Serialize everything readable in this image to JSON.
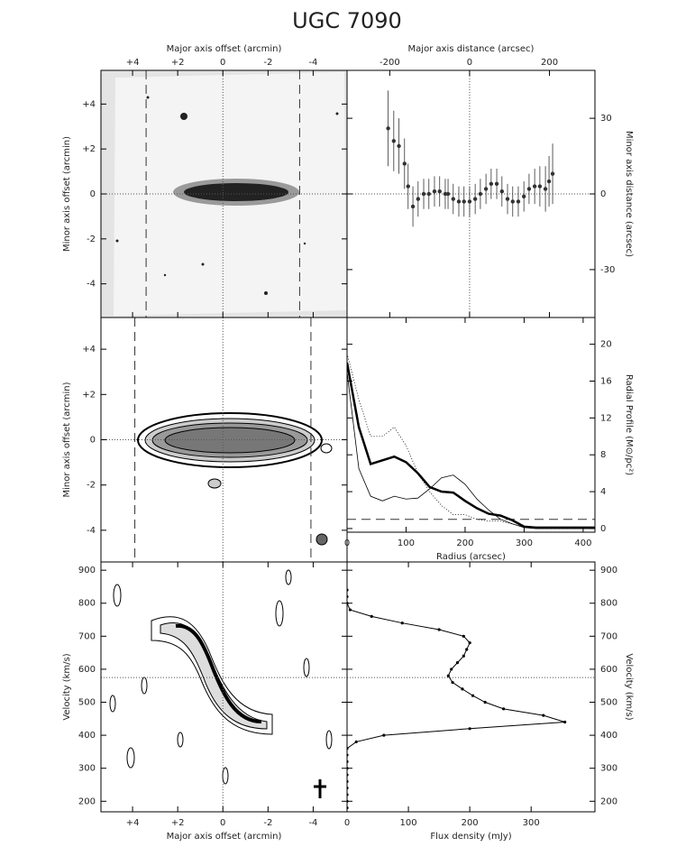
{
  "title": "UGC 7090",
  "chart_data": [
    {
      "type": "image",
      "x_label": "Major axis offset (arcmin)",
      "y_label": "Minor axis offset (arcmin)",
      "xlim": [
        5.4,
        -5.5
      ],
      "ylim": [
        -5.5,
        5.5
      ],
      "xticks": [
        {
          "value": 4,
          "label": "+4"
        },
        {
          "value": 2,
          "label": "+2"
        },
        0,
        -2,
        -4
      ],
      "yticks": [
        {
          "value": 4,
          "label": "+4"
        },
        {
          "value": 2,
          "label": "+2"
        },
        0,
        -2,
        -4
      ],
      "dashed_x": [
        3.4,
        -3.4
      ],
      "zero_lines": true
    },
    {
      "type": "scatter",
      "x_label": "Major axis distance (arcsec)",
      "y_label": "Minor axis distance (arcsec)",
      "xlim": [
        -307,
        314
      ],
      "ylim": [
        -49,
        49
      ],
      "xticks": [
        -200,
        0,
        200
      ],
      "yticks": [
        30,
        0,
        -30
      ],
      "zero_lines": true,
      "series": [
        {
          "color": "#333333",
          "x": [
            -204,
            -190,
            -177,
            -163,
            -154,
            -142,
            -129,
            -115,
            -102,
            -88,
            -75,
            -61,
            -54,
            -41,
            -27,
            -14,
            0,
            14,
            27,
            41,
            54,
            68,
            81,
            95,
            108,
            122,
            136,
            149,
            163,
            176,
            190,
            199,
            208
          ],
          "values": [
            26,
            21,
            19,
            12,
            3,
            -5,
            -2,
            0,
            0,
            1,
            1,
            0,
            0,
            -2,
            -3,
            -3,
            -3,
            -2,
            0,
            2,
            4,
            4,
            1,
            -2,
            -3,
            -3,
            -1,
            2,
            3,
            3,
            2,
            5,
            8
          ],
          "errors": [
            15,
            12,
            11,
            10,
            9,
            8,
            7,
            6,
            6,
            6,
            6,
            6,
            6,
            6,
            6,
            6,
            6,
            6,
            6,
            6,
            6,
            6,
            6,
            6,
            6,
            6,
            6,
            6,
            7,
            8,
            9,
            10,
            12
          ]
        }
      ]
    },
    {
      "type": "image",
      "y_label": "Minor axis offset (arcmin)",
      "xlim": [
        5.4,
        -5.5
      ],
      "ylim": [
        -5.4,
        5.4
      ],
      "yticks": [
        {
          "value": 4,
          "label": "+4"
        },
        {
          "value": 2,
          "label": "+2"
        },
        0,
        -2,
        -4
      ],
      "dashed_x": [
        3.9,
        -3.9
      ],
      "zero_lines": true
    },
    {
      "type": "line",
      "x_label": "Radius (arcsec)",
      "y_label": "Radial Profile (M⊙/pc²)",
      "xlim": [
        0,
        420
      ],
      "ylim": [
        -0.4,
        22.9
      ],
      "xticks": [
        0,
        100,
        200,
        300,
        400
      ],
      "yticks": [
        0,
        4,
        8,
        12,
        16,
        20
      ],
      "reference_line": 1,
      "x": [
        0,
        20,
        40,
        60,
        80,
        100,
        120,
        140,
        160,
        180,
        200,
        220,
        240,
        260,
        280,
        300,
        320,
        340,
        360,
        380,
        400,
        420
      ],
      "series": [
        {
          "color": "#000000",
          "width": 2.5,
          "dash": "none",
          "values": [
            18,
            11,
            7,
            7.4,
            7.8,
            7.2,
            6,
            4.5,
            4,
            3.9,
            3,
            2.2,
            1.6,
            1.4,
            0.9,
            0.2,
            0.1,
            0.1,
            0.1,
            0.1,
            0.1,
            0.1
          ]
        },
        {
          "color": "#000000",
          "width": 0.8,
          "dash": "none",
          "values": [
            17,
            6.5,
            3.5,
            3,
            3.5,
            3.2,
            3.3,
            4.3,
            5.5,
            5.8,
            4.8,
            3.2,
            2,
            1,
            0.5,
            0.1,
            0,
            0,
            0,
            0,
            0,
            0
          ]
        },
        {
          "color": "#000000",
          "width": 0.8,
          "dash": "1,2",
          "values": [
            19,
            14,
            10,
            10,
            11,
            9,
            6,
            4,
            2.5,
            1.5,
            1.5,
            1,
            0.8,
            0.8,
            0.5,
            0.2,
            0,
            0,
            0,
            0,
            0,
            0
          ]
        }
      ]
    },
    {
      "type": "image",
      "x_label": "Major axis offset (arcmin)",
      "y_label": "Velocity (km/s)",
      "xlim": [
        5.4,
        -5.5
      ],
      "ylim": [
        168,
        925
      ],
      "xticks": [
        {
          "value": 4,
          "label": "+4"
        },
        {
          "value": 2,
          "label": "+2"
        },
        0,
        -2,
        -4
      ],
      "yticks": [
        200,
        300,
        400,
        500,
        600,
        700,
        800,
        900
      ],
      "vsys": 575,
      "zero_lines": true
    },
    {
      "type": "line",
      "orientation": "horizontal",
      "x_label": "Flux density (mJy)",
      "y_label": "Velocity (km/s)",
      "xlim": [
        0,
        404
      ],
      "ylim": [
        168,
        925
      ],
      "xticks": [
        0,
        100,
        200,
        300
      ],
      "yticks": [
        200,
        300,
        400,
        500,
        600,
        700,
        800,
        900
      ],
      "vsys": 575,
      "y": [
        840,
        820,
        800,
        780,
        760,
        740,
        720,
        700,
        680,
        660,
        640,
        620,
        600,
        580,
        560,
        540,
        520,
        500,
        480,
        460,
        440,
        420,
        400,
        380,
        360,
        340,
        320,
        300,
        280,
        260,
        240,
        220,
        200,
        180
      ],
      "series": [
        {
          "color": "#000000",
          "width": 1,
          "dash": "none",
          "values": [
            0,
            0,
            0,
            5,
            40,
            90,
            150,
            190,
            200,
            195,
            190,
            180,
            170,
            165,
            172,
            188,
            205,
            225,
            255,
            320,
            355,
            200,
            60,
            15,
            0,
            0,
            0,
            0,
            0,
            0,
            0,
            0,
            0,
            0
          ]
        }
      ]
    }
  ]
}
